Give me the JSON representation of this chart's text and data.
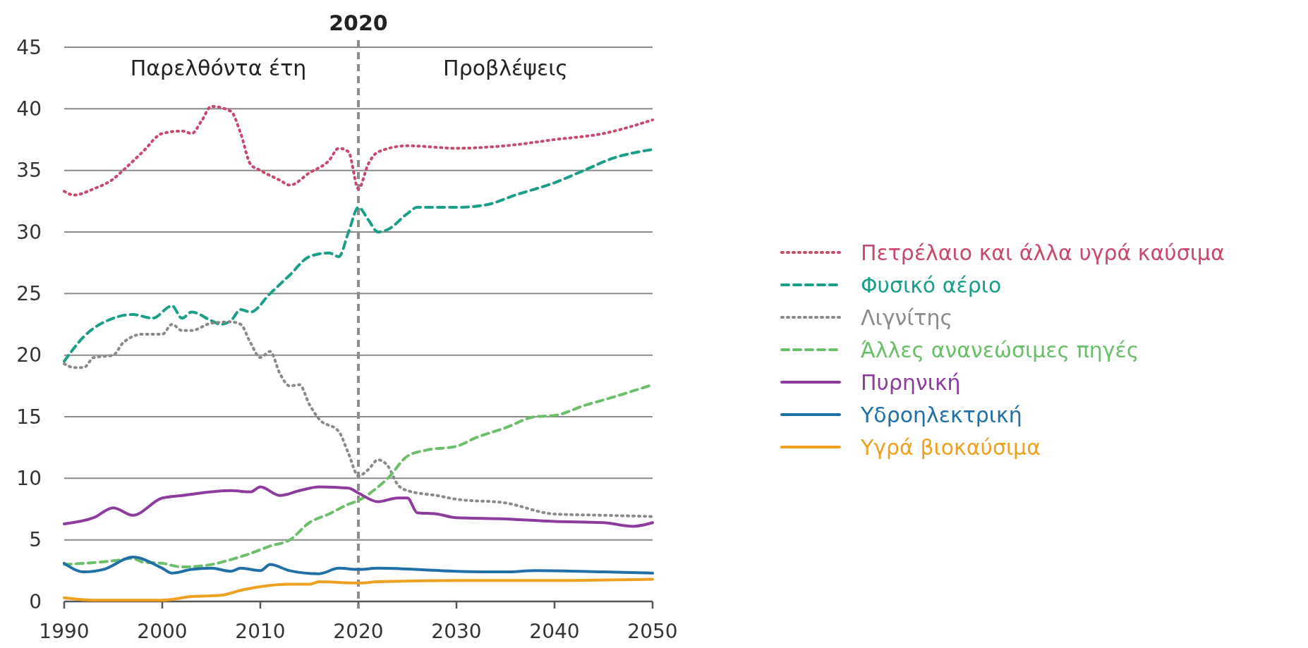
{
  "chart_data": {
    "type": "line",
    "xlim": [
      1990,
      2050
    ],
    "xticks": [
      1990,
      2000,
      2010,
      2020,
      2030,
      2040,
      2050
    ],
    "ylim": [
      0,
      45
    ],
    "yticks": [
      0,
      5,
      10,
      15,
      20,
      25,
      30,
      35,
      40,
      45
    ],
    "grid": "y",
    "legend": "right",
    "marker": "none",
    "ref_lines": [
      {
        "axis": "x",
        "value": 2020,
        "label": "2020",
        "color": "#8c8c8c",
        "line_style": "dashed"
      }
    ],
    "annotations": [
      "Παρελθόντα έτη",
      "Προβλέψεις"
    ],
    "series": [
      {
        "name": "Πετρέλαιο και άλλα υγρά καύσιμα",
        "color": "#c8496b",
        "line_style": "dotted",
        "x": [
          1990,
          1991,
          1993,
          1995,
          1996,
          1998,
          2000,
          2002,
          2003,
          2004,
          2005,
          2007,
          2008,
          2009,
          2010,
          2012,
          2013,
          2015,
          2017,
          2018,
          2019,
          2020,
          2021,
          2022,
          2025,
          2030,
          2035,
          2040,
          2045,
          2050
        ],
        "values": [
          33.3,
          33.0,
          33.5,
          34.3,
          35,
          36.5,
          38.0,
          38.2,
          38.0,
          39,
          40.2,
          39.8,
          38,
          35.5,
          35,
          34.2,
          33.8,
          34.8,
          35.8,
          36.8,
          36.5,
          33.5,
          35.5,
          36.5,
          37,
          36.8,
          37,
          37.5,
          38,
          39.1
        ]
      },
      {
        "name": "Φυσικό αέριο",
        "color": "#1a9e8a",
        "line_style": "dashed",
        "x": [
          1990,
          1992,
          1995,
          1997,
          1999,
          2001,
          2002,
          2003,
          2005,
          2006,
          2007,
          2008,
          2009,
          2011,
          2013,
          2015,
          2017,
          2018,
          2019,
          2020,
          2021,
          2022,
          2023,
          2025,
          2026,
          2030,
          2033,
          2036,
          2040,
          2043,
          2046,
          2050
        ],
        "values": [
          19.5,
          21.5,
          23,
          23.3,
          23,
          24,
          23,
          23.5,
          22.8,
          22.5,
          22.8,
          23.7,
          23.5,
          25,
          26.5,
          28,
          28.3,
          28,
          30,
          32,
          31,
          30,
          30.2,
          31.5,
          32,
          32,
          32.2,
          33,
          34,
          35,
          36,
          36.7
        ]
      },
      {
        "name": "Λιγνίτης",
        "color": "#8a8a8a",
        "line_style": "dotted",
        "x": [
          1990,
          1991,
          1992,
          1993,
          1995,
          1996,
          1998,
          2000,
          2001,
          2002,
          2003,
          2005,
          2007,
          2008,
          2009,
          2010,
          2011,
          2012,
          2013,
          2014,
          2015,
          2016,
          2018,
          2019,
          2020,
          2021,
          2022,
          2023,
          2024,
          2025,
          2028,
          2030,
          2035,
          2040,
          2045,
          2050
        ],
        "values": [
          19.3,
          19,
          19,
          19.8,
          20,
          21,
          21.7,
          21.7,
          22.5,
          22,
          22,
          22.6,
          22.7,
          22.5,
          21,
          19.8,
          20.3,
          18.5,
          17.5,
          17.6,
          16,
          14.8,
          13.8,
          12,
          10.2,
          10.7,
          11.5,
          11,
          9.5,
          9,
          8.6,
          8.3,
          8.0,
          7.1,
          7.0,
          6.9
        ]
      },
      {
        "name": "Άλλες ανανεώσιμες πηγές",
        "color": "#6abf69",
        "line_style": "dashed",
        "x": [
          1990,
          1995,
          1997,
          1998,
          2000,
          2002,
          2005,
          2007,
          2009,
          2011,
          2013,
          2015,
          2017,
          2019,
          2020,
          2022,
          2023,
          2025,
          2027,
          2030,
          2032,
          2035,
          2038,
          2040,
          2043,
          2046,
          2050
        ],
        "values": [
          3.0,
          3.3,
          3.5,
          3.2,
          3.1,
          2.8,
          3.0,
          3.4,
          3.9,
          4.5,
          5.0,
          6.4,
          7.1,
          7.9,
          8.2,
          9.3,
          10,
          11.8,
          12.3,
          12.6,
          13.3,
          14.1,
          15,
          15.1,
          15.9,
          16.6,
          17.6
        ]
      },
      {
        "name": "Πυρηνική",
        "color": "#8e3a9e",
        "line_style": "solid",
        "x": [
          1990,
          1993,
          1995,
          1997,
          2000,
          2002,
          2005,
          2007,
          2009,
          2010,
          2012,
          2014,
          2016,
          2019,
          2020,
          2022,
          2024,
          2025,
          2026,
          2028,
          2030,
          2035,
          2040,
          2045,
          2048,
          2050
        ],
        "values": [
          6.3,
          6.8,
          7.6,
          7.0,
          8.4,
          8.6,
          8.9,
          9.0,
          8.9,
          9.3,
          8.6,
          9.0,
          9.3,
          9.2,
          8.8,
          8.1,
          8.4,
          8.4,
          7.2,
          7.1,
          6.8,
          6.7,
          6.5,
          6.4,
          6.1,
          6.4
        ]
      },
      {
        "name": "Υδροηλεκτρική",
        "color": "#1f6fa8",
        "line_style": "solid",
        "x": [
          1990,
          1992,
          1994,
          1997,
          2000,
          2001,
          2003,
          2005,
          2007,
          2008,
          2010,
          2011,
          2013,
          2016,
          2018,
          2020,
          2022,
          2030,
          2035,
          2038,
          2045,
          2050
        ],
        "values": [
          3.1,
          2.4,
          2.6,
          3.6,
          2.7,
          2.3,
          2.6,
          2.7,
          2.45,
          2.7,
          2.5,
          3.0,
          2.5,
          2.25,
          2.7,
          2.6,
          2.7,
          2.45,
          2.4,
          2.5,
          2.4,
          2.3
        ]
      },
      {
        "name": "Υγρά βιοκαύσιμα",
        "color": "#f0a020",
        "line_style": "solid",
        "x": [
          1990,
          1993,
          2000,
          2003,
          2006,
          2008,
          2010,
          2013,
          2015,
          2016,
          2020,
          2022,
          2030,
          2040,
          2050
        ],
        "values": [
          0.3,
          0.1,
          0.1,
          0.4,
          0.5,
          0.9,
          1.2,
          1.4,
          1.4,
          1.6,
          1.5,
          1.6,
          1.7,
          1.7,
          1.8
        ]
      }
    ]
  }
}
